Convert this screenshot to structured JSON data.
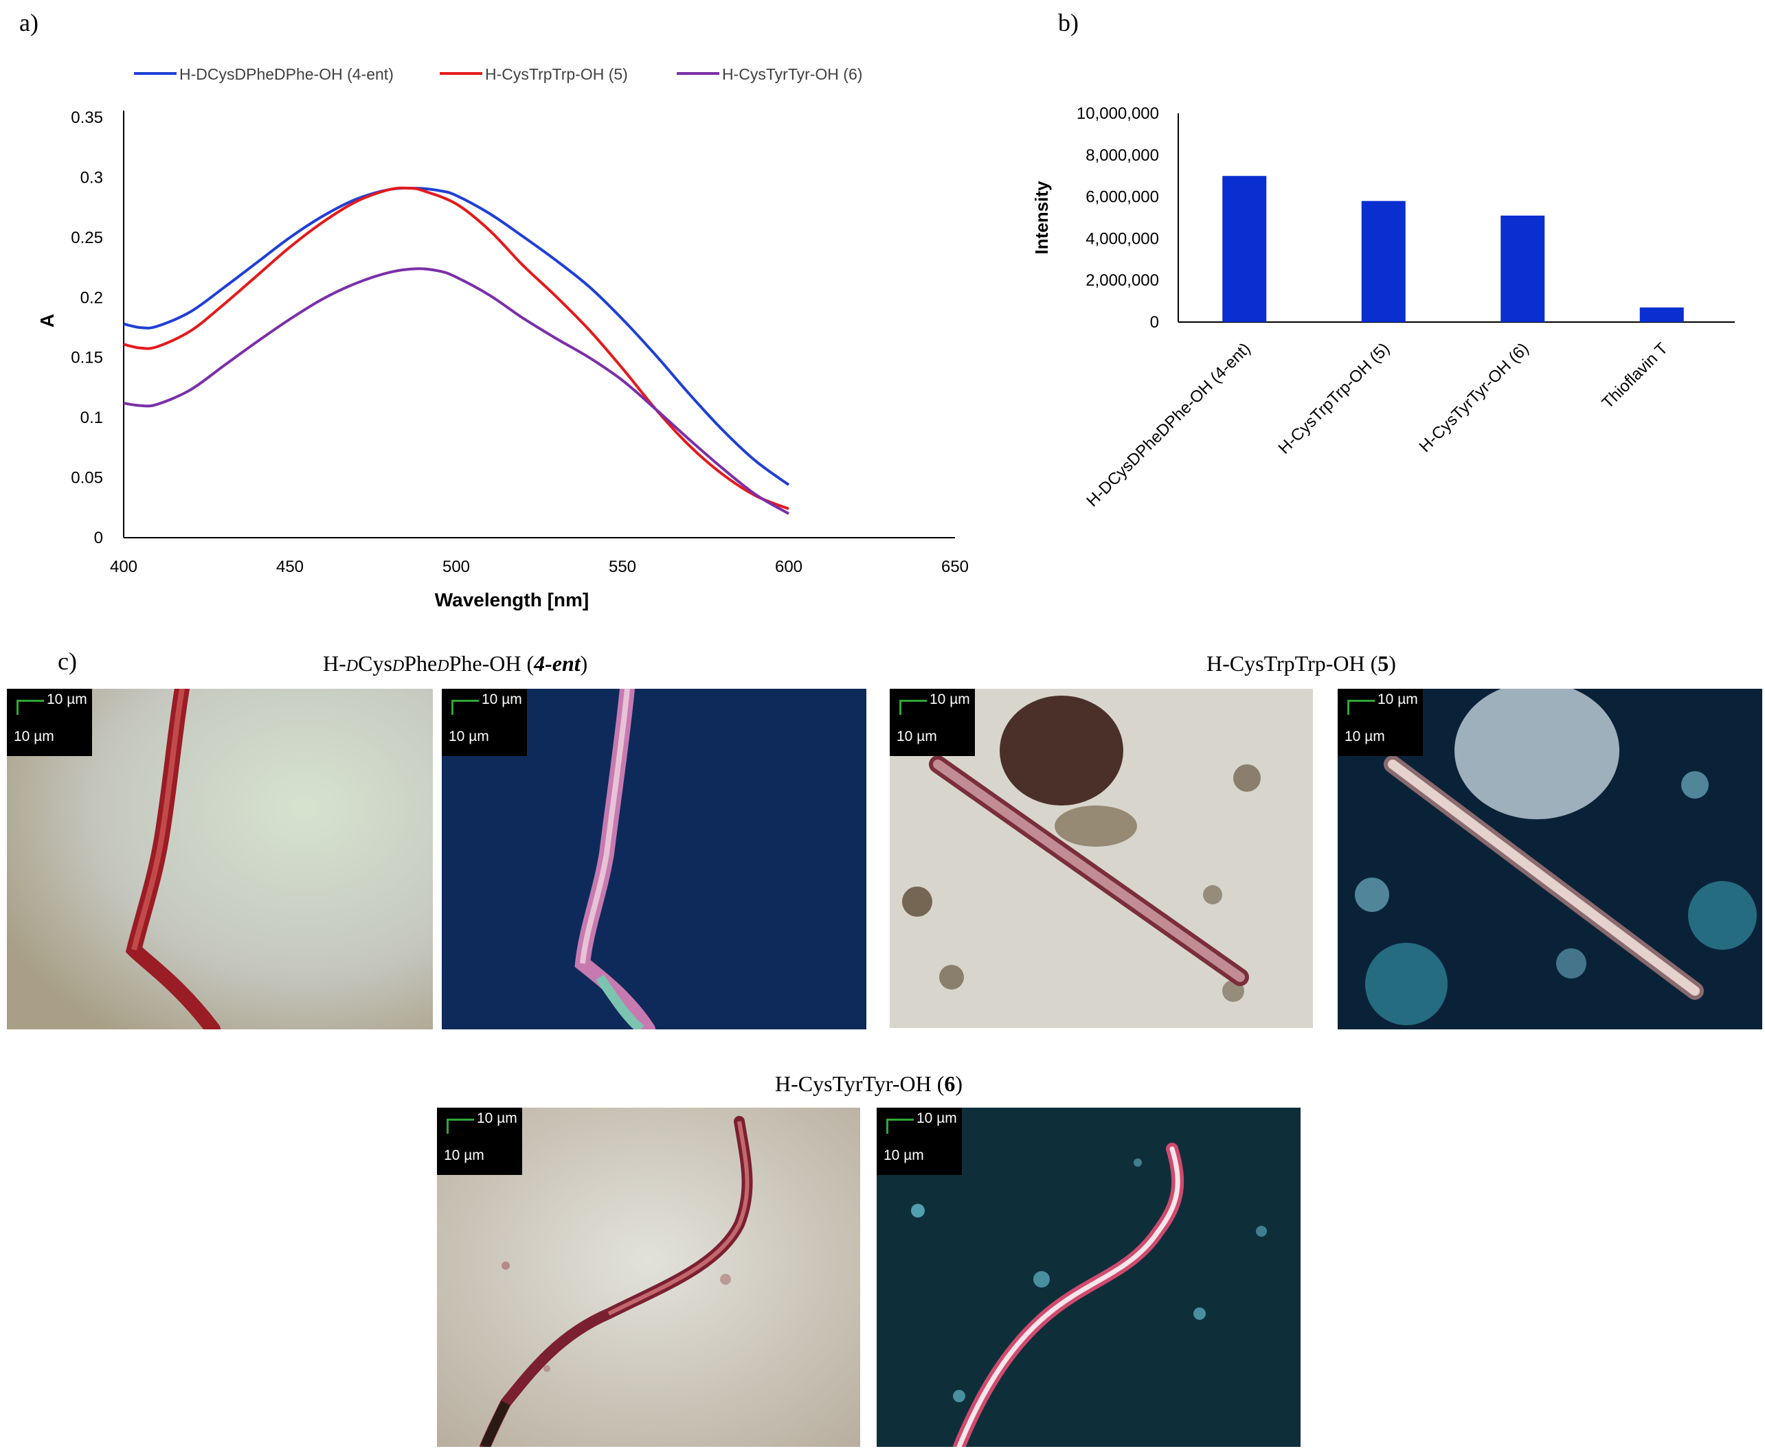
{
  "panels": {
    "a_label": "a)",
    "b_label": "b)",
    "c_label": "c)"
  },
  "chart_data": [
    {
      "type": "line",
      "xlabel": "Wavelength [nm]",
      "ylabel": "A",
      "xlim": [
        400,
        650
      ],
      "ylim": [
        0,
        0.35
      ],
      "xticks": [
        "400",
        "450",
        "500",
        "550",
        "600",
        "650"
      ],
      "yticks": [
        "0",
        "0.05",
        "0.1",
        "0.15",
        "0.2",
        "0.25",
        "0.3",
        "0.35"
      ],
      "legend_position": "top",
      "grid": false,
      "series": [
        {
          "name": "H-DCysDPheDPhe-OH (4-ent)",
          "color": "#1f3fd6",
          "x": [
            400,
            405,
            410,
            420,
            430,
            440,
            450,
            460,
            470,
            480,
            488,
            495,
            500,
            510,
            520,
            530,
            540,
            550,
            560,
            570,
            580,
            590,
            600
          ],
          "y": [
            0.178,
            0.175,
            0.176,
            0.188,
            0.208,
            0.229,
            0.25,
            0.268,
            0.282,
            0.29,
            0.291,
            0.289,
            0.285,
            0.27,
            0.251,
            0.231,
            0.209,
            0.182,
            0.152,
            0.12,
            0.09,
            0.064,
            0.044
          ]
        },
        {
          "name": "H-CysTrpTrp-OH (5)",
          "color": "#e41a1c",
          "x": [
            400,
            405,
            410,
            420,
            430,
            440,
            450,
            460,
            470,
            480,
            486,
            490,
            500,
            510,
            520,
            530,
            540,
            550,
            560,
            570,
            580,
            590,
            600
          ],
          "y": [
            0.161,
            0.158,
            0.159,
            0.172,
            0.194,
            0.218,
            0.242,
            0.263,
            0.28,
            0.29,
            0.291,
            0.289,
            0.278,
            0.256,
            0.227,
            0.201,
            0.173,
            0.141,
            0.107,
            0.077,
            0.053,
            0.035,
            0.024
          ]
        },
        {
          "name": "H-CysTyrTyr-OH (6)",
          "color": "#7b2fa8",
          "x": [
            400,
            405,
            410,
            420,
            430,
            440,
            450,
            460,
            470,
            480,
            488,
            495,
            500,
            510,
            520,
            530,
            540,
            550,
            560,
            570,
            580,
            590,
            600
          ],
          "y": [
            0.112,
            0.11,
            0.111,
            0.123,
            0.143,
            0.163,
            0.182,
            0.199,
            0.212,
            0.221,
            0.224,
            0.222,
            0.217,
            0.202,
            0.183,
            0.166,
            0.15,
            0.131,
            0.107,
            0.082,
            0.058,
            0.036,
            0.02
          ]
        }
      ]
    },
    {
      "type": "bar",
      "ylabel": "Intensity",
      "ylim": [
        0,
        10000000
      ],
      "yticks": [
        "0",
        "2,000,000",
        "4,000,000",
        "6,000,000",
        "8,000,000",
        "10,000,000"
      ],
      "bar_color": "#0a2fd0",
      "categories": [
        "H-DCysDPheDPhe-OH (4-ent)",
        "H-CysTrpTrp-OH (5)",
        "H-CysTyrTyr-OH (6)",
        "Thioflavin T"
      ],
      "values": [
        7000000,
        5800000,
        5100000,
        700000
      ]
    }
  ],
  "micrographs": {
    "title_4ent": {
      "pre": "H-",
      "d1": "D",
      "mid1": "Cys",
      "d2": "D",
      "mid2": "Phe",
      "d3": "D",
      "mid3": "Phe-OH (",
      "bold_italic": "4-ent",
      "post": ")"
    },
    "title_5": {
      "pre": "H-CysTrpTrp-OH (",
      "bold": "5",
      "post": ")"
    },
    "title_6": {
      "pre": "H-CysTyrTyr-OH (",
      "bold": "6",
      "post": ")"
    },
    "scale_label": "10 µm",
    "scale_label_2": "10 µm"
  }
}
